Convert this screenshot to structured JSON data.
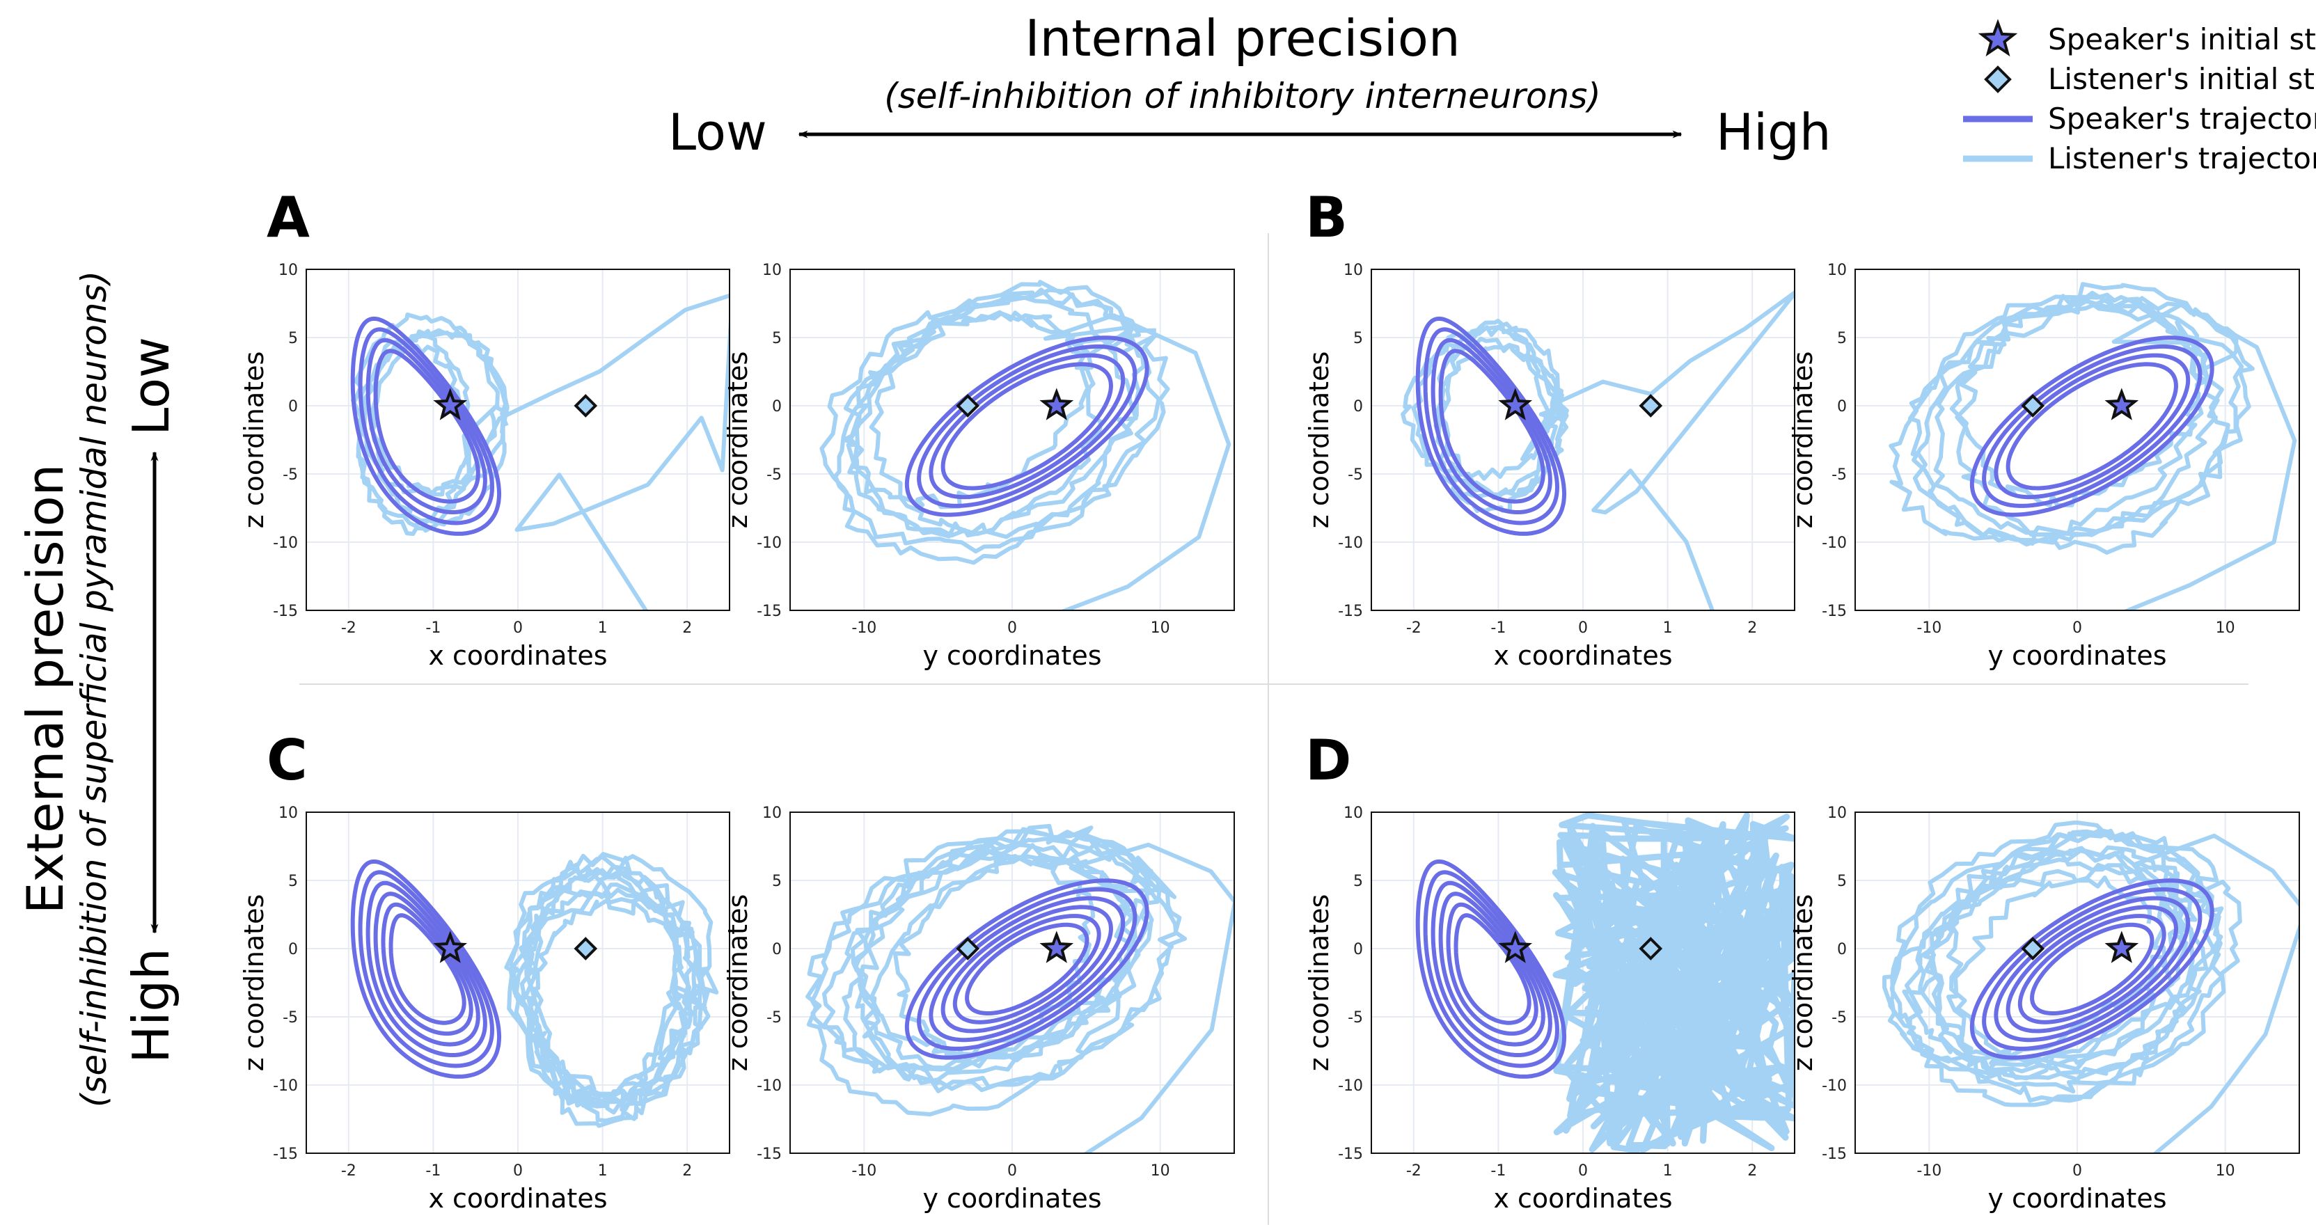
{
  "header": {
    "title": "Internal precision",
    "subtitle": "(self-inhibition of inhibitory interneurons)",
    "low": "Low",
    "high": "High"
  },
  "side": {
    "title": "External precision",
    "subtitle": "(self-inhibition of superficial pyramidal neurons)",
    "low": "Low",
    "high": "High"
  },
  "legend": [
    {
      "label": "Speaker's initial state",
      "symbol": "star"
    },
    {
      "label": "Listener's initial state",
      "symbol": "diamond"
    },
    {
      "label": "Speaker's trajectory",
      "symbol": "line-dark"
    },
    {
      "label": "Listener's trajectory",
      "symbol": "line-light"
    }
  ],
  "colors": {
    "speaker": "#6a6ee6",
    "listener": "#a3d2f5",
    "grid": "#e6eaf2"
  },
  "chart_data": [
    {
      "panel": "A",
      "type": "line",
      "internal_precision": "Low",
      "external_precision": "Low",
      "subplots": [
        {
          "xlabel": "x coordinates",
          "ylabel": "z coordinates",
          "xlim": [
            -2.5,
            2.5
          ],
          "ylim": [
            -15,
            10
          ],
          "xticks": [
            -2,
            -1,
            0,
            1,
            2
          ],
          "yticks": [
            10,
            5,
            0,
            -5,
            -10,
            -15
          ],
          "speaker_initial": [
            -0.8,
            0
          ],
          "listener_initial": [
            0.8,
            0
          ]
        },
        {
          "xlabel": "y coordinates",
          "ylabel": "z coordinates",
          "xlim": [
            -15,
            15
          ],
          "ylim": [
            -15,
            10
          ],
          "xticks": [
            -10,
            0,
            10
          ],
          "yticks": [
            10,
            5,
            0,
            -5,
            -10,
            -15
          ],
          "speaker_initial": [
            3,
            0
          ],
          "listener_initial": [
            -3,
            0
          ]
        }
      ]
    },
    {
      "panel": "B",
      "type": "line",
      "internal_precision": "High",
      "external_precision": "Low",
      "subplots": [
        {
          "xlabel": "x coordinates",
          "ylabel": "z coordinates",
          "xlim": [
            -2.5,
            2.5
          ],
          "ylim": [
            -15,
            10
          ],
          "xticks": [
            -2,
            -1,
            0,
            1,
            2
          ],
          "yticks": [
            10,
            5,
            0,
            -5,
            -10,
            -15
          ],
          "speaker_initial": [
            -0.8,
            0
          ],
          "listener_initial": [
            0.8,
            0
          ]
        },
        {
          "xlabel": "y coordinates",
          "ylabel": "z coordinates",
          "xlim": [
            -15,
            15
          ],
          "ylim": [
            -15,
            10
          ],
          "xticks": [
            -10,
            0,
            10
          ],
          "yticks": [
            10,
            5,
            0,
            -5,
            -10,
            -15
          ],
          "speaker_initial": [
            3,
            0
          ],
          "listener_initial": [
            -3,
            0
          ]
        }
      ]
    },
    {
      "panel": "C",
      "type": "line",
      "internal_precision": "Low",
      "external_precision": "High",
      "subplots": [
        {
          "xlabel": "x coordinates",
          "ylabel": "z coordinates",
          "xlim": [
            -2.5,
            2.5
          ],
          "ylim": [
            -15,
            10
          ],
          "xticks": [
            -2,
            -1,
            0,
            1,
            2
          ],
          "yticks": [
            10,
            5,
            0,
            -5,
            -10,
            -15
          ],
          "speaker_initial": [
            -0.8,
            0
          ],
          "listener_initial": [
            0.8,
            0
          ]
        },
        {
          "xlabel": "y coordinates",
          "ylabel": "z coordinates",
          "xlim": [
            -15,
            15
          ],
          "ylim": [
            -15,
            10
          ],
          "xticks": [
            -10,
            0,
            10
          ],
          "yticks": [
            10,
            5,
            0,
            -5,
            -10,
            -15
          ],
          "speaker_initial": [
            3,
            0
          ],
          "listener_initial": [
            -3,
            0
          ]
        }
      ]
    },
    {
      "panel": "D",
      "type": "line",
      "internal_precision": "High",
      "external_precision": "High",
      "subplots": [
        {
          "xlabel": "x coordinates",
          "ylabel": "z coordinates",
          "xlim": [
            -2.5,
            2.5
          ],
          "ylim": [
            -15,
            10
          ],
          "xticks": [
            -2,
            -1,
            0,
            1,
            2
          ],
          "yticks": [
            10,
            5,
            0,
            -5,
            -10,
            -15
          ],
          "speaker_initial": [
            -0.8,
            0
          ],
          "listener_initial": [
            0.8,
            0
          ]
        },
        {
          "xlabel": "y coordinates",
          "ylabel": "z coordinates",
          "xlim": [
            -15,
            15
          ],
          "ylim": [
            -15,
            10
          ],
          "xticks": [
            -10,
            0,
            10
          ],
          "yticks": [
            10,
            5,
            0,
            -5,
            -10,
            -15
          ],
          "speaker_initial": [
            3,
            0
          ],
          "listener_initial": [
            -3,
            0
          ]
        }
      ]
    }
  ]
}
